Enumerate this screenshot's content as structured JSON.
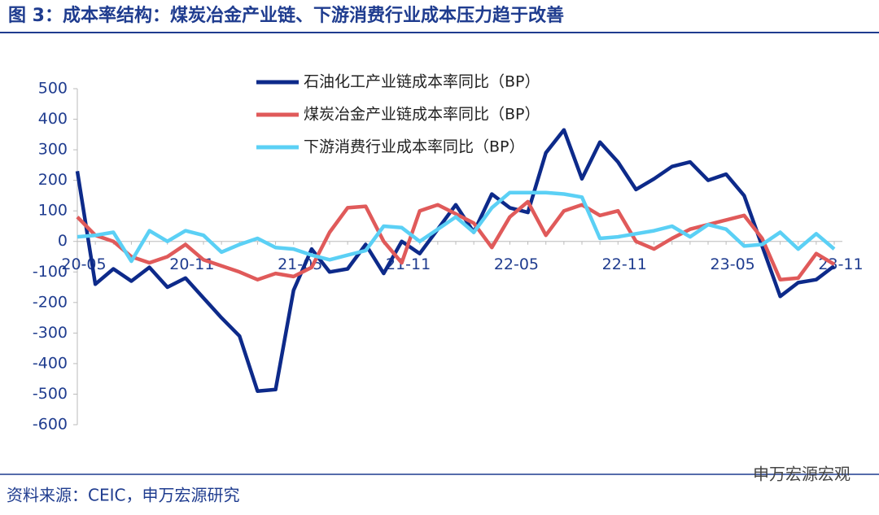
{
  "chart_data": {
    "type": "line",
    "title": "图 3：成本率结构：煤炭冶金产业链、下游消费行业成本压力趋于改善",
    "categories": [
      "20-05",
      null,
      null,
      null,
      null,
      null,
      "20-11",
      null,
      null,
      null,
      null,
      null,
      "21-05",
      null,
      null,
      null,
      null,
      null,
      "21-11",
      null,
      null,
      null,
      null,
      null,
      "22-05",
      null,
      null,
      null,
      null,
      null,
      "22-11",
      null,
      null,
      null,
      null,
      null,
      "23-05",
      null,
      null,
      null,
      null,
      null,
      "23-11"
    ],
    "series": [
      {
        "name": "石油化工产业链成本率同比（BP）",
        "color": "#0d2a8a",
        "values": [
          230,
          -140,
          -90,
          -130,
          -85,
          -150,
          -120,
          -185,
          -250,
          -310,
          -490,
          -485,
          -160,
          -25,
          -100,
          -90,
          -10,
          -105,
          0,
          -40,
          40,
          120,
          30,
          155,
          110,
          95,
          290,
          365,
          205,
          325,
          260,
          170,
          205,
          245,
          260,
          200,
          220,
          150,
          -15,
          -180,
          -135,
          -125,
          -80
        ]
      },
      {
        "name": "煤炭冶金产业链成本率同比（BP）",
        "color": "#e05a5a",
        "values": [
          80,
          20,
          0,
          -50,
          -70,
          -50,
          -10,
          -60,
          -80,
          -100,
          -125,
          -105,
          -115,
          -85,
          30,
          110,
          115,
          0,
          -70,
          100,
          120,
          90,
          60,
          -20,
          80,
          130,
          20,
          100,
          120,
          85,
          100,
          0,
          -25,
          10,
          40,
          55,
          70,
          85,
          10,
          -125,
          -120,
          -40,
          -75
        ]
      },
      {
        "name": "下游消费行业成本率同比（BP）",
        "color": "#5bd0f5",
        "values": [
          15,
          20,
          30,
          -65,
          35,
          0,
          35,
          20,
          -35,
          -10,
          10,
          -20,
          -25,
          -45,
          -60,
          -45,
          -30,
          50,
          45,
          0,
          40,
          80,
          30,
          110,
          160,
          160,
          160,
          155,
          145,
          10,
          15,
          25,
          35,
          50,
          15,
          55,
          40,
          -15,
          -10,
          30,
          -25,
          25,
          -25
        ]
      }
    ],
    "ylim": [
      -600,
      500
    ],
    "yticks": [
      500,
      400,
      300,
      200,
      100,
      0,
      -100,
      -200,
      -300,
      -400,
      -500,
      -600
    ],
    "legend": "top",
    "grid": false
  },
  "source": "资料来源：CEIC，申万宏源研究",
  "watermark": "申万宏源宏观"
}
